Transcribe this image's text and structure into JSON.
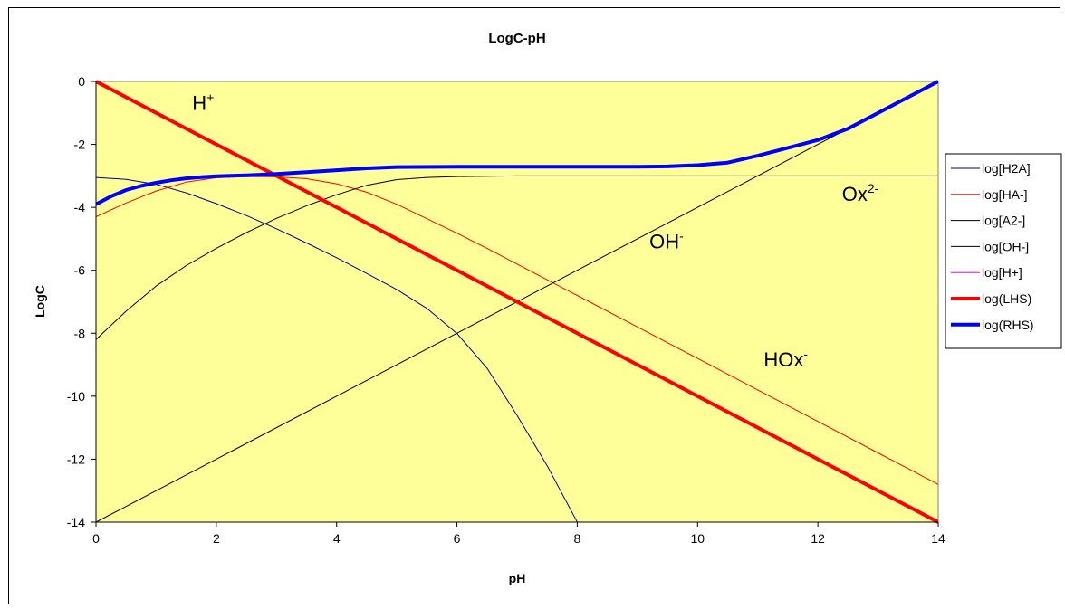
{
  "chart_data": {
    "type": "line",
    "title": "LogC-pH",
    "xlabel": "pH",
    "ylabel": "LogC",
    "xlim": [
      0,
      14
    ],
    "ylim": [
      -14,
      0
    ],
    "x_ticks": [
      0,
      2,
      4,
      6,
      8,
      10,
      12,
      14
    ],
    "y_ticks": [
      0,
      -2,
      -4,
      -6,
      -8,
      -10,
      -12,
      -14
    ],
    "plot_background": "#FFFF99",
    "grid": false,
    "legend_position": "right",
    "series": [
      {
        "name": "log[H2A]",
        "color": "#000080",
        "width": 1,
        "x": [
          0,
          0.5,
          1,
          1.5,
          2,
          2.5,
          3,
          3.5,
          4,
          4.5,
          5,
          5.5,
          6,
          6.5,
          7,
          7.5,
          8
        ],
        "y": [
          -3.05,
          -3.11,
          -3.27,
          -3.54,
          -3.88,
          -4.26,
          -4.68,
          -5.13,
          -5.6,
          -6.1,
          -6.61,
          -7.21,
          -8.01,
          -9.11,
          -10.61,
          -12.21,
          -14.0
        ]
      },
      {
        "name": "log[HA-]",
        "color": "#FF0000",
        "width": 1,
        "x": [
          0,
          0.5,
          1,
          1.5,
          2,
          2.5,
          3,
          3.5,
          4,
          4.5,
          5,
          5.5,
          6,
          6.5,
          7,
          8,
          9,
          10,
          11,
          12,
          13,
          14
        ],
        "y": [
          -4.3,
          -3.86,
          -3.48,
          -3.2,
          -3.06,
          -3.02,
          -3.03,
          -3.09,
          -3.25,
          -3.52,
          -3.9,
          -4.36,
          -4.82,
          -5.3,
          -5.8,
          -6.8,
          -7.8,
          -8.8,
          -9.8,
          -10.8,
          -11.8,
          -12.8
        ]
      },
      {
        "name": "log[A2-]",
        "color": "#000000",
        "width": 1,
        "x": [
          0,
          0.5,
          1,
          1.5,
          2,
          2.5,
          3,
          3.5,
          4,
          4.5,
          5,
          5.5,
          6,
          7,
          8,
          9,
          10,
          11,
          12,
          13,
          14
        ],
        "y": [
          -8.2,
          -7.3,
          -6.5,
          -5.85,
          -5.3,
          -4.8,
          -4.35,
          -3.95,
          -3.6,
          -3.3,
          -3.12,
          -3.05,
          -3.02,
          -3.0,
          -3.0,
          -3.0,
          -3.0,
          -3.0,
          -3.0,
          -3.0,
          -3.0
        ]
      },
      {
        "name": "log[OH-]",
        "color": "#000000",
        "width": 1,
        "x": [
          0,
          14
        ],
        "y": [
          -14,
          0
        ]
      },
      {
        "name": "log[H+]",
        "color": "#FF00FF",
        "width": 1,
        "x": [
          0,
          14
        ],
        "y": [
          0,
          -14
        ]
      },
      {
        "name": "log(LHS)",
        "color": "#FF0000",
        "width": 4,
        "x": [
          0,
          14
        ],
        "y": [
          0,
          -14
        ]
      },
      {
        "name": "log(RHS)",
        "color": "#0000FF",
        "width": 4,
        "x": [
          0,
          0.25,
          0.5,
          0.75,
          1,
          1.25,
          1.5,
          1.75,
          2,
          2.5,
          3,
          3.5,
          4,
          4.5,
          5,
          6,
          7,
          8,
          9,
          9.5,
          10,
          10.5,
          11,
          11.5,
          12,
          12.5,
          13,
          13.5,
          14
        ],
        "y": [
          -3.9,
          -3.65,
          -3.45,
          -3.32,
          -3.22,
          -3.14,
          -3.08,
          -3.04,
          -3.01,
          -2.98,
          -2.94,
          -2.88,
          -2.82,
          -2.76,
          -2.72,
          -2.71,
          -2.71,
          -2.71,
          -2.71,
          -2.7,
          -2.66,
          -2.58,
          -2.36,
          -2.11,
          -1.86,
          -1.5,
          -1.0,
          -0.5,
          0.0
        ]
      }
    ],
    "annotations": [
      {
        "text": "H",
        "sup": "+",
        "x": 1.6,
        "y": -0.9
      },
      {
        "text": "Ox",
        "sup": "2-",
        "x": 12.4,
        "y": -3.8
      },
      {
        "text": "OH",
        "sup": "-",
        "x": 9.2,
        "y": -5.3
      },
      {
        "text": "HOx",
        "sup": "-",
        "x": 11.1,
        "y": -9.05
      }
    ]
  }
}
